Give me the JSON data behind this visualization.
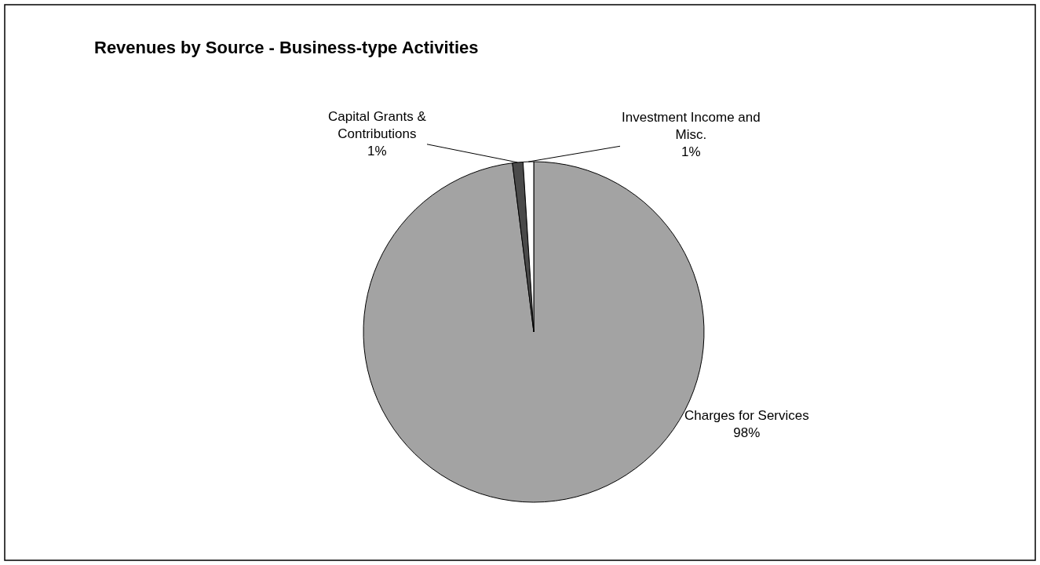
{
  "chart_data": {
    "type": "pie",
    "title": "Revenues by Source - Business-type Activities",
    "categories": [
      "Charges for Services",
      "Capital Grants & Contributions",
      "Investment Income and Misc."
    ],
    "values": [
      98,
      1,
      1
    ],
    "value_labels": [
      "98%",
      "1%",
      "1%"
    ],
    "colors": [
      "#a3a3a3",
      "#4a4a4a",
      "#ffffff"
    ],
    "legend": false
  }
}
